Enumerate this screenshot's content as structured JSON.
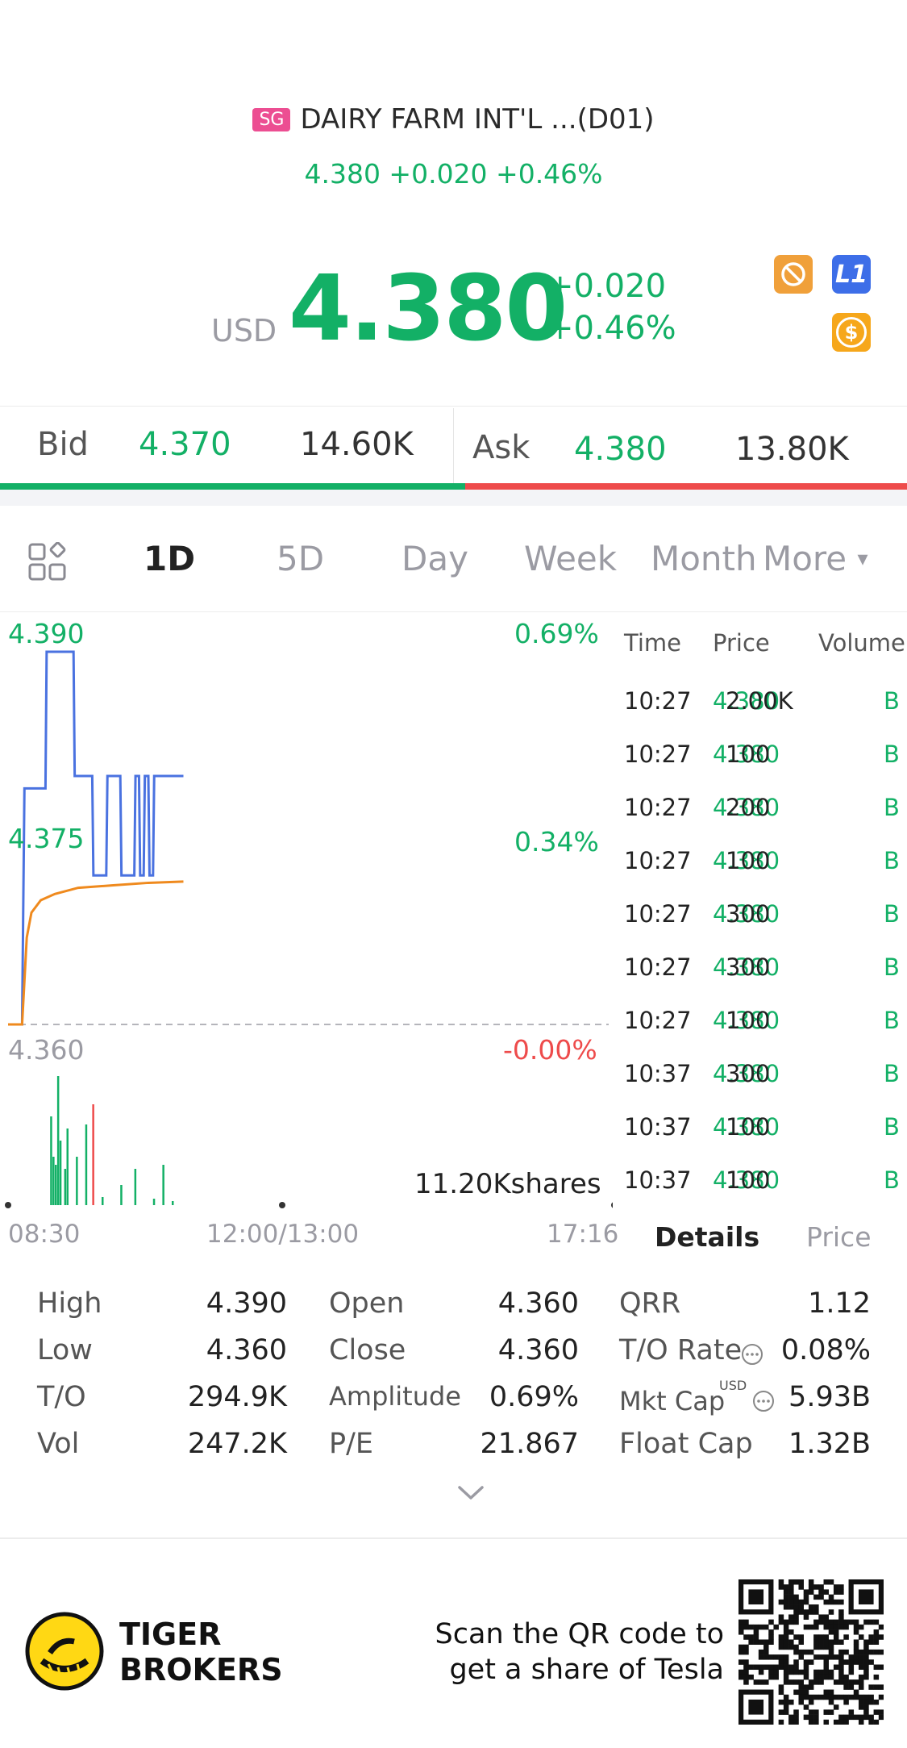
{
  "header": {
    "market_badge": "SG",
    "title": "DAIRY FARM INT'L ...(D01)",
    "quote_line": "4.380 +0.020 +0.46%"
  },
  "price_block": {
    "currency": "USD",
    "price": "4.380",
    "change": "+0.020",
    "change_pct": "+0.46%",
    "icons": [
      "no-entry-icon",
      "l1-level-icon",
      "dollar-icon"
    ],
    "icon_l1_text": "L1",
    "icon_dollar_text": "$"
  },
  "bidask": {
    "bid_label": "Bid",
    "bid_price": "4.370",
    "bid_size": "14.60K",
    "ask_label": "Ask",
    "ask_price": "4.380",
    "ask_size": "13.80K"
  },
  "tabs": {
    "items": [
      "1D",
      "5D",
      "Day",
      "Week",
      "Month",
      "More"
    ],
    "active": "1D",
    "more_arrow": "▾"
  },
  "chart": {
    "y_high": "4.390",
    "y_mid": "4.375",
    "y_low": "4.360",
    "pct_high": "0.69%",
    "pct_mid": "0.34%",
    "pct_low": "-0.00%",
    "volume_label": "11.20Kshares",
    "time_start": "08:30",
    "time_mid": "12:00/13:00",
    "time_end": "17:16"
  },
  "chart_data": {
    "type": "line",
    "title": "",
    "ylim": [
      4.36,
      4.39
    ],
    "prev_close": 4.36,
    "series": [
      {
        "color": "#4a72e0",
        "kind": "price",
        "x": [
          0,
          2,
          6,
          7,
          16,
          16.5,
          28,
          28.5,
          36,
          36.5,
          42,
          42.5,
          48,
          48.5,
          54,
          54.5,
          56,
          56.5,
          58,
          58.5,
          60,
          60.5,
          62,
          62.5,
          75
        ],
        "values": [
          4.36,
          4.36,
          4.36,
          4.379,
          4.379,
          4.39,
          4.39,
          4.38,
          4.38,
          4.372,
          4.372,
          4.38,
          4.38,
          4.372,
          4.372,
          4.38,
          4.38,
          4.372,
          4.372,
          4.38,
          4.38,
          4.372,
          4.372,
          4.38,
          4.38
        ]
      },
      {
        "color": "#ef8a1e",
        "kind": "average",
        "x": [
          0,
          2,
          6,
          8,
          10,
          14,
          20,
          30,
          45,
          60,
          75
        ],
        "values": [
          4.36,
          4.36,
          4.36,
          4.367,
          4.369,
          4.37,
          4.3705,
          4.371,
          4.3712,
          4.3714,
          4.3715
        ]
      }
    ],
    "volume_bars": [
      {
        "x": 18,
        "v": 110,
        "color": "#13b066"
      },
      {
        "x": 19,
        "v": 60,
        "color": "#13b066"
      },
      {
        "x": 20,
        "v": 50,
        "color": "#13b066"
      },
      {
        "x": 21,
        "v": 160,
        "color": "#13b066"
      },
      {
        "x": 22,
        "v": 80,
        "color": "#13b066"
      },
      {
        "x": 24,
        "v": 45,
        "color": "#13b066"
      },
      {
        "x": 25,
        "v": 95,
        "color": "#13b066"
      },
      {
        "x": 29,
        "v": 60,
        "color": "#13b066"
      },
      {
        "x": 33,
        "v": 100,
        "color": "#13b066"
      },
      {
        "x": 36,
        "v": 125,
        "color": "#ee4b4b"
      },
      {
        "x": 40,
        "v": 10,
        "color": "#13b066"
      },
      {
        "x": 48,
        "v": 25,
        "color": "#13b066"
      },
      {
        "x": 54,
        "v": 45,
        "color": "#13b066"
      },
      {
        "x": 62,
        "v": 8,
        "color": "#13b066"
      },
      {
        "x": 66,
        "v": 50,
        "color": "#13b066"
      },
      {
        "x": 70,
        "v": 5,
        "color": "#13b066"
      }
    ]
  },
  "trades": {
    "headers": [
      "Time",
      "Price",
      "Volume"
    ],
    "rows": [
      {
        "time": "10:27",
        "price": "4.380",
        "volume": "2.00K",
        "side": "B"
      },
      {
        "time": "10:27",
        "price": "4.380",
        "volume": "100",
        "side": "B"
      },
      {
        "time": "10:27",
        "price": "4.380",
        "volume": "200",
        "side": "B"
      },
      {
        "time": "10:27",
        "price": "4.380",
        "volume": "100",
        "side": "B"
      },
      {
        "time": "10:27",
        "price": "4.380",
        "volume": "300",
        "side": "B"
      },
      {
        "time": "10:27",
        "price": "4.380",
        "volume": "300",
        "side": "B"
      },
      {
        "time": "10:27",
        "price": "4.380",
        "volume": "100",
        "side": "B"
      },
      {
        "time": "10:37",
        "price": "4.380",
        "volume": "300",
        "side": "B"
      },
      {
        "time": "10:37",
        "price": "4.380",
        "volume": "100",
        "side": "B"
      },
      {
        "time": "10:37",
        "price": "4.380",
        "volume": "100",
        "side": "B"
      }
    ],
    "tab_details": "Details",
    "tab_price": "Price"
  },
  "details": {
    "col1": [
      {
        "label": "High",
        "value": "4.390"
      },
      {
        "label": "Low",
        "value": "4.360"
      },
      {
        "label": "T/O",
        "value": "294.9K"
      },
      {
        "label": "Vol",
        "value": "247.2K"
      }
    ],
    "col2": [
      {
        "label": "Open",
        "value": "4.360"
      },
      {
        "label": "Close",
        "value": "4.360"
      },
      {
        "label": "Amplitude",
        "value": "0.69%"
      },
      {
        "label": "P/E",
        "value": "21.867"
      }
    ],
    "col3": [
      {
        "label": "QRR",
        "value": "1.12"
      },
      {
        "label": "T/O Rate",
        "value": "0.08%"
      },
      {
        "label": "Mkt Cap",
        "value": "5.93B",
        "sup": "USD"
      },
      {
        "label": "Float Cap",
        "value": "1.32B"
      }
    ],
    "expand_icon": "chevron-down-icon"
  },
  "footer": {
    "brand_line1": "TIGER",
    "brand_line2": "BROKERS",
    "promo_line1": "Scan the QR code to",
    "promo_line2": "get a share of Tesla"
  }
}
